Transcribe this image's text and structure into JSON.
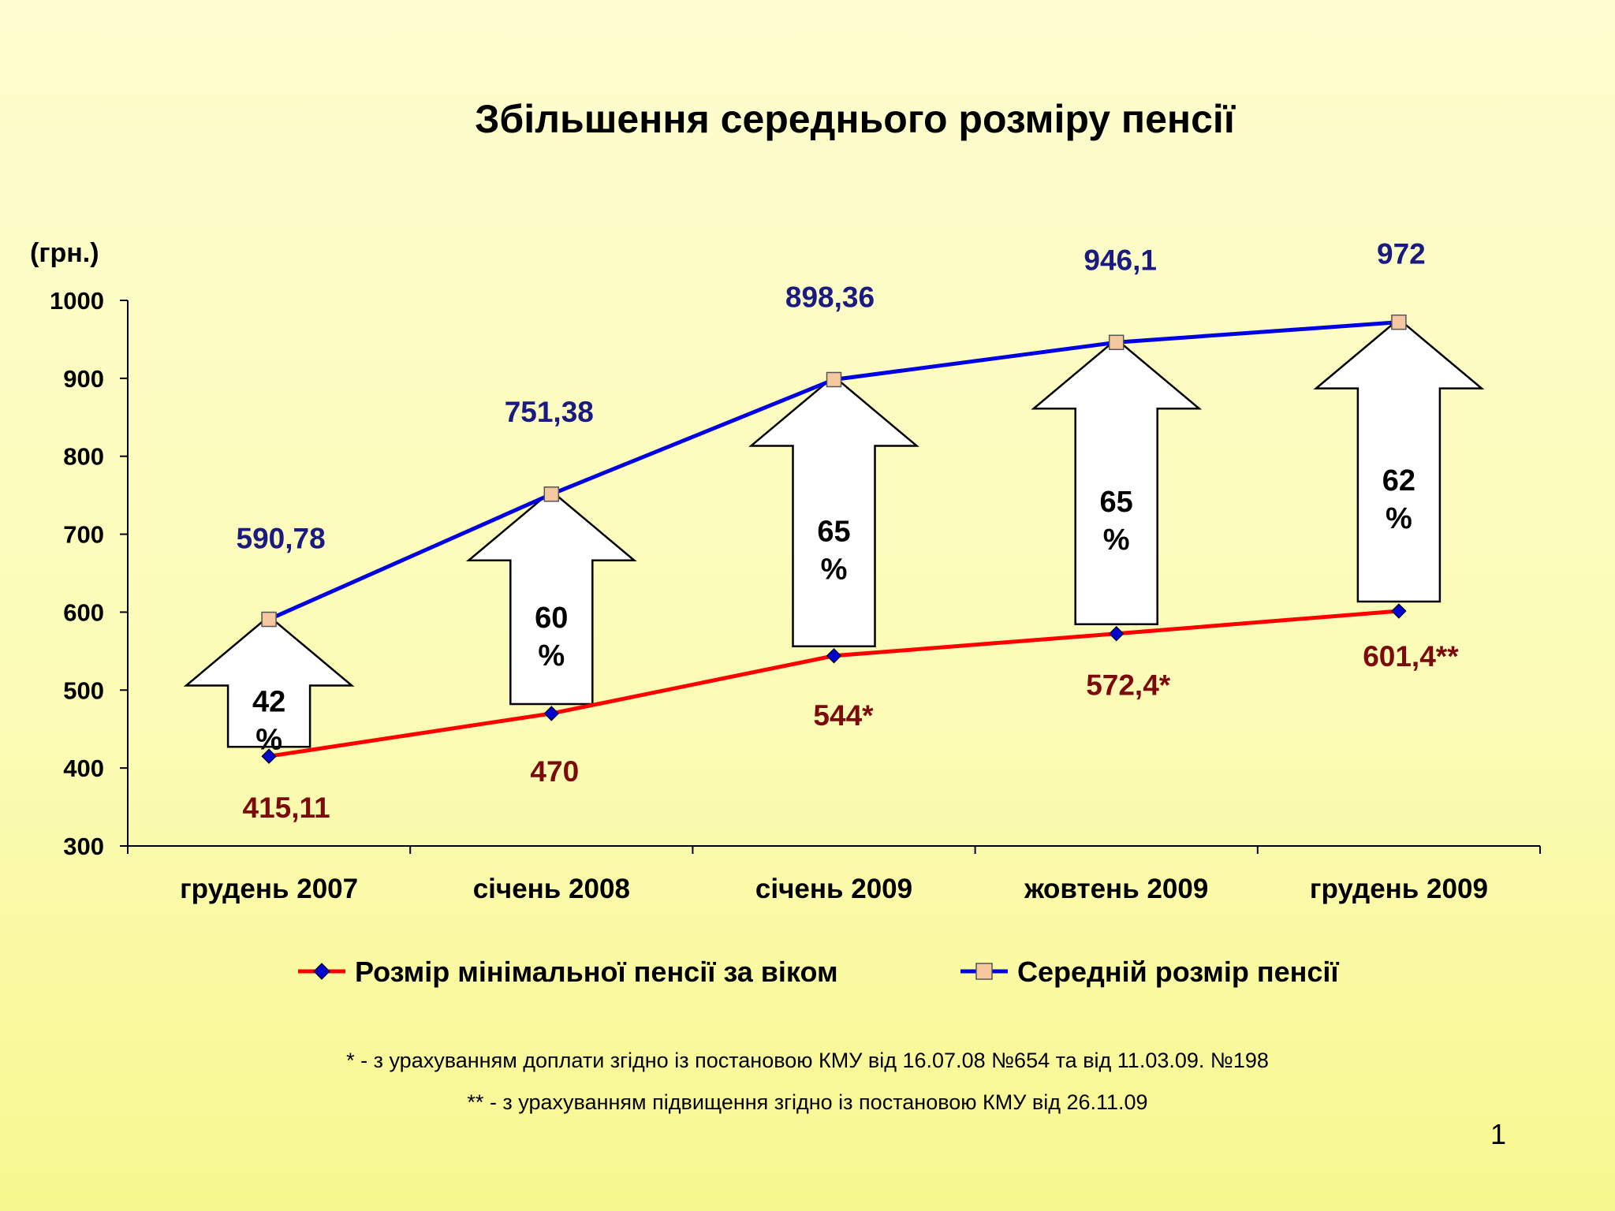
{
  "title": "Збільшення середнього розміру пенсії",
  "chart_data": {
    "type": "line",
    "title": "Збільшення середнього розміру пенсії",
    "ylabel": "(грн.)",
    "xlabel": "",
    "ylim": [
      300,
      1000
    ],
    "yticks": [
      300,
      400,
      500,
      600,
      700,
      800,
      900,
      1000
    ],
    "grid": false,
    "legend_position": "bottom",
    "categories": [
      "грудень 2007",
      "січень 2008",
      "січень 2009",
      "жовтень 2009",
      "грудень 2009"
    ],
    "series": [
      {
        "name": "Розмір мінімальної пенсії за віком",
        "color": "#ff0000",
        "marker": "diamond",
        "marker_color": "#0000cc",
        "label_color": "#7b0a0a",
        "values": [
          415.11,
          470,
          544,
          572.4,
          601.4
        ],
        "labels": [
          "415,11",
          "470",
          "544*",
          "572,4*",
          "601,4**"
        ]
      },
      {
        "name": "Середній розмір пенсії",
        "color": "#0000e0",
        "marker": "square",
        "marker_color": "#f5c8a0",
        "label_color": "#1a1a80",
        "values": [
          590.78,
          751.38,
          898.36,
          946.1,
          972
        ],
        "labels": [
          "590,78",
          "751,38",
          "898,36",
          "946,1",
          "972"
        ]
      }
    ],
    "annotations": [
      {
        "category": "грудень 2007",
        "line1": "42",
        "line2": "%"
      },
      {
        "category": "січень 2008",
        "line1": "60",
        "line2": "%"
      },
      {
        "category": "січень 2009",
        "line1": "65",
        "line2": "%"
      },
      {
        "category": "жовтень 2009",
        "line1": "65",
        "line2": "%"
      },
      {
        "category": "грудень 2009",
        "line1": "62",
        "line2": "%"
      }
    ]
  },
  "footnotes": {
    "note1": "* - з урахуванням доплати згідно із постановою КМУ від 16.07.08 №654 та від 11.03.09. №198",
    "note2": "** - з урахуванням підвищення згідно із постановою КМУ від 26.11.09"
  },
  "slide_number": "1"
}
